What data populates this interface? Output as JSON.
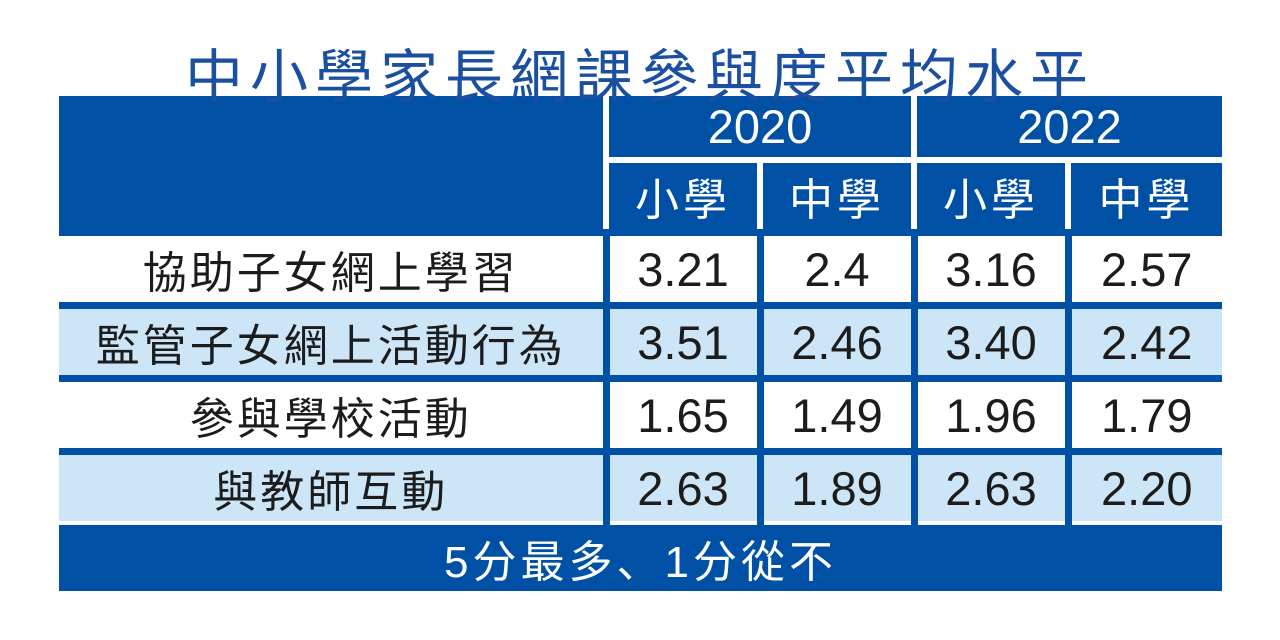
{
  "page": {
    "title": "中小學家長網課參與度平均水平"
  },
  "chart_data": {
    "type": "table",
    "title": "中小學家長網課參與度平均水平",
    "column_groups": [
      {
        "label": "2020",
        "columns": [
          "小學",
          "中學"
        ]
      },
      {
        "label": "2022",
        "columns": [
          "小學",
          "中學"
        ]
      }
    ],
    "columns_flat": [
      "2020 小學",
      "2020 中學",
      "2022 小學",
      "2022 中學"
    ],
    "rows": [
      {
        "label": "協助子女網上學習",
        "values": [
          "3.21",
          "2.4",
          "3.16",
          "2.57"
        ]
      },
      {
        "label": "監管子女網上活動行為",
        "values": [
          "3.51",
          "2.46",
          "3.40",
          "2.42"
        ]
      },
      {
        "label": "參與學校活動",
        "values": [
          "1.65",
          "1.49",
          "1.96",
          "1.79"
        ]
      },
      {
        "label": "與教師互動",
        "values": [
          "2.63",
          "1.89",
          "2.63",
          "2.20"
        ]
      }
    ],
    "note": "5分最多、1分從不",
    "scale": {
      "max": 5,
      "min": 1
    },
    "colors": {
      "dark_blue": "#0051a5",
      "light_blue": "#cde6f7",
      "title_blue": "#1b4f9f",
      "text": "#1c1c1c"
    }
  }
}
